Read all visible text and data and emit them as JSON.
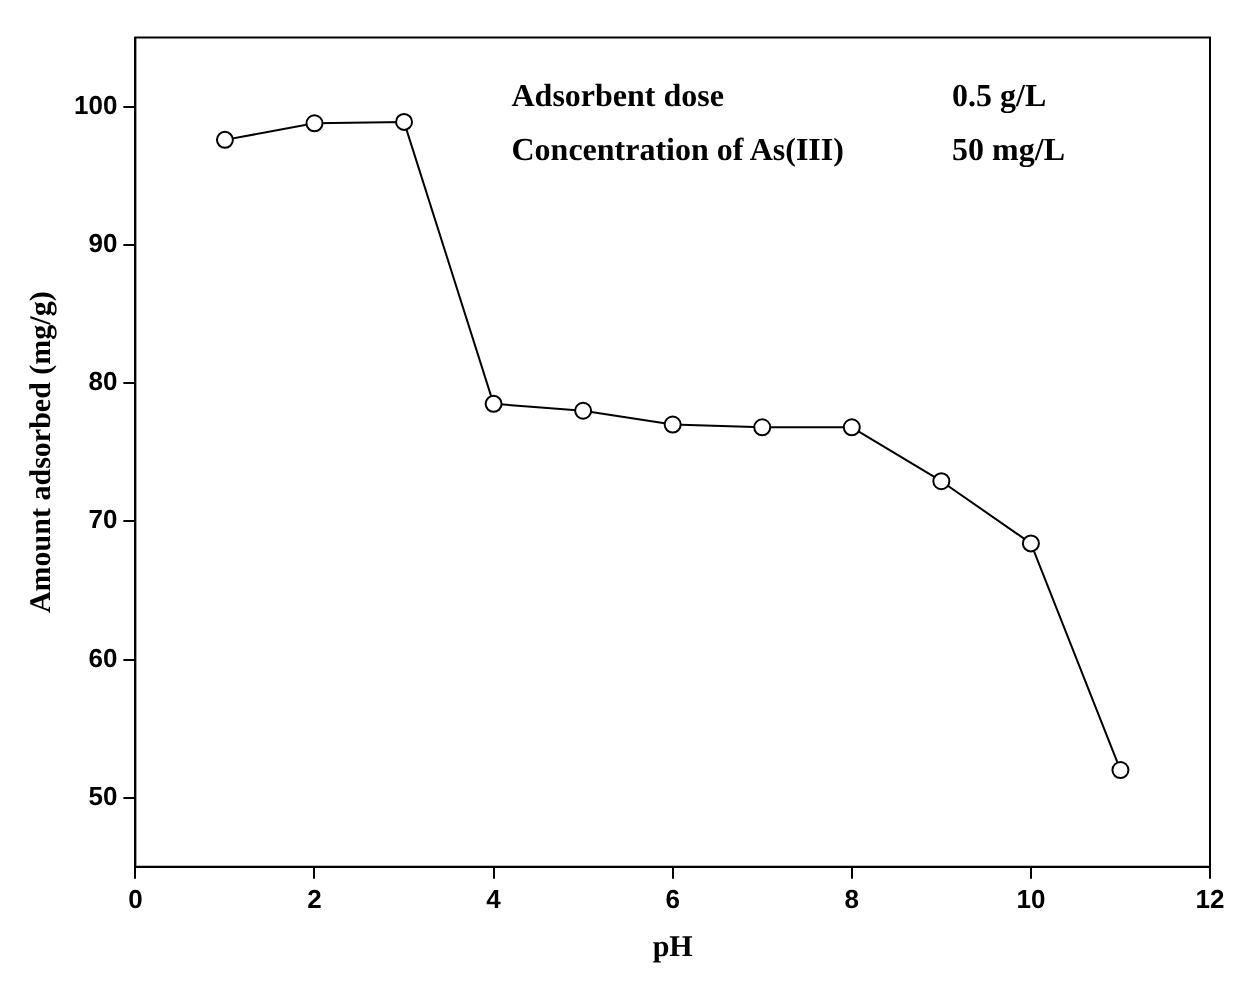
{
  "chart_data": {
    "type": "line",
    "xlabel": "pH",
    "ylabel": "Amount adsorbed (mg/g)",
    "x": [
      1,
      2,
      3,
      4,
      5,
      6,
      7,
      8,
      9,
      10,
      11
    ],
    "series": [
      {
        "color": "#000000",
        "values": [
          97.6,
          98.8,
          98.9,
          78.5,
          78.0,
          77.0,
          76.8,
          76.8,
          72.9,
          68.4,
          52.0
        ]
      }
    ],
    "xlim": [
      0,
      12
    ],
    "xticks": [
      0,
      2,
      4,
      6,
      8,
      10,
      12
    ],
    "ylim": [
      45,
      105
    ],
    "yticks": [
      50,
      60,
      70,
      80,
      90,
      100
    ],
    "marker": "circle",
    "line_style": "solid",
    "annotations": [
      "Adsorbent dose",
      "0.5 g/L",
      "Concentration of As(III)",
      "50 mg/L"
    ]
  }
}
